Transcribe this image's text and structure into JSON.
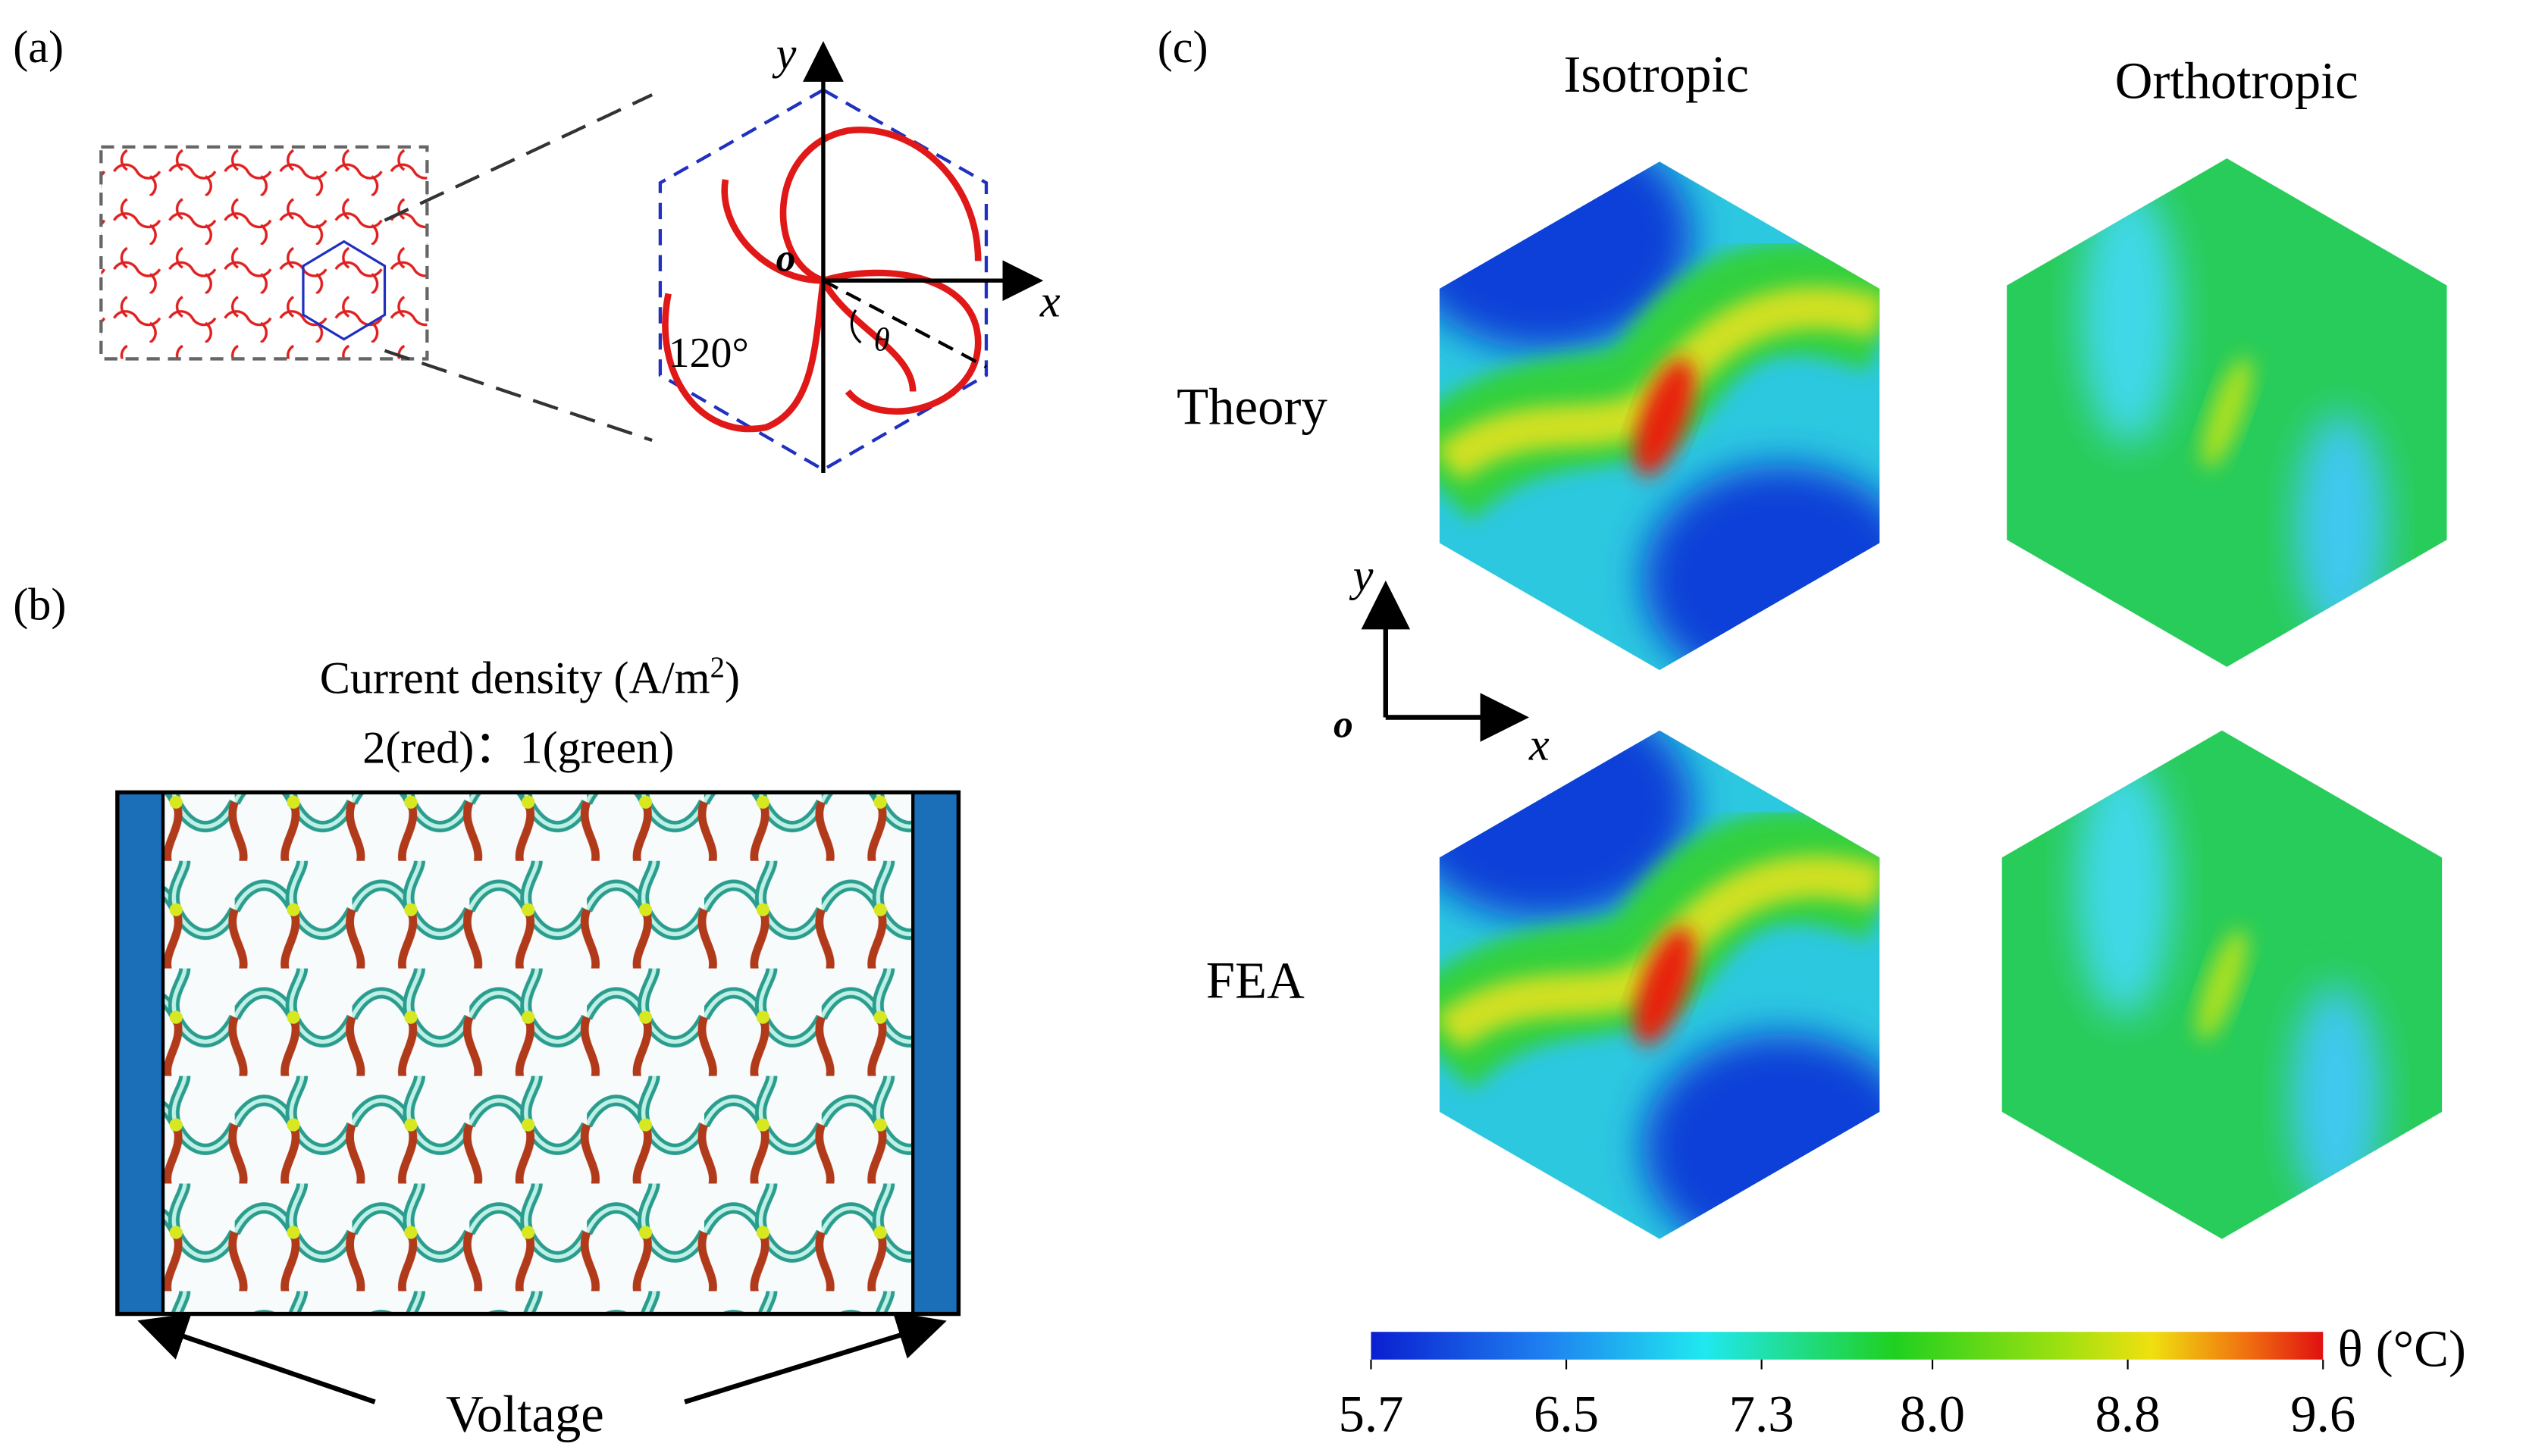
{
  "panel_a": {
    "label": "(a)",
    "axis_y": "y",
    "axis_o": "o",
    "axis_x": "x",
    "angle": "120°",
    "theta": "θ"
  },
  "panel_b": {
    "label": "(b)",
    "title": "Current density (A/m",
    "title_sup": "2",
    "title_close": ")",
    "ratio": "2(red)：1(green)",
    "voltage": "Voltage"
  },
  "panel_c": {
    "label": "(c)",
    "columns": [
      "Isotropic",
      "Orthotropic"
    ],
    "rows": [
      "Theory",
      "FEA"
    ],
    "axis_y": "y",
    "axis_o": "o",
    "axis_x": "x",
    "colorbar": {
      "label": "θ (°C)",
      "lim": [
        5.7,
        9.6
      ],
      "ticks": [
        5.7,
        6.5,
        7.3,
        {
          "value": 8,
          "label": "8.0"
        },
        8.8,
        9.6
      ]
    }
  }
}
